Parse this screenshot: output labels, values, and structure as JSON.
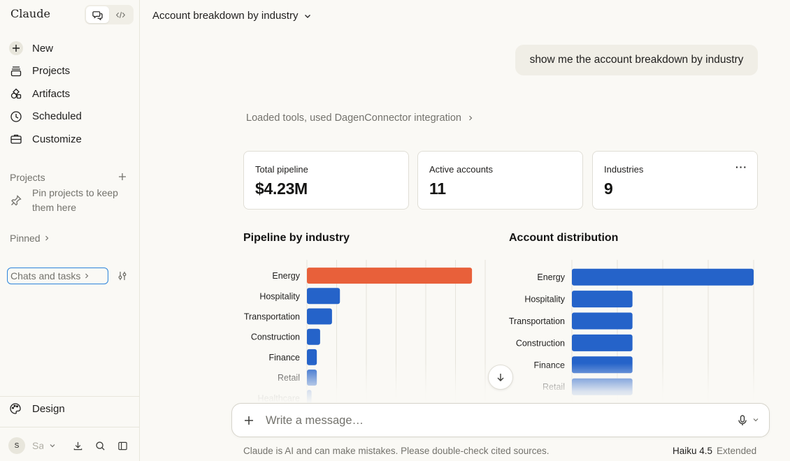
{
  "sidebar": {
    "brand": "Claude",
    "nav": [
      {
        "label": "New",
        "icon": "plus-icon"
      },
      {
        "label": "Projects",
        "icon": "projects-icon"
      },
      {
        "label": "Artifacts",
        "icon": "artifacts-icon"
      },
      {
        "label": "Scheduled",
        "icon": "clock-icon"
      },
      {
        "label": "Customize",
        "icon": "briefcase-icon"
      }
    ],
    "projects_label": "Projects",
    "pin_hint": "Pin projects to keep them here",
    "pinned_label": "Pinned",
    "chats_filter_label": "Chats and tasks",
    "design_label": "Design",
    "user_initial": "S",
    "user_name": "Sa"
  },
  "header": {
    "title": "Account breakdown by industry"
  },
  "conversation": {
    "user_message": "show me the account breakdown by industry",
    "tools_line": "Loaded tools, used DagenConnector integration"
  },
  "stats": [
    {
      "label": "Total pipeline",
      "value": "$4.23M"
    },
    {
      "label": "Active accounts",
      "value": "11"
    },
    {
      "label": "Industries",
      "value": "9",
      "menu": "···"
    }
  ],
  "chart_data": [
    {
      "type": "bar",
      "orientation": "horizontal",
      "title": "Pipeline by industry",
      "categories": [
        "Energy",
        "Hospitality",
        "Transportation",
        "Construction",
        "Finance",
        "Retail",
        "Healthcare"
      ],
      "values": [
        2.5,
        0.5,
        0.38,
        0.2,
        0.15,
        0.15,
        0.07
      ],
      "xlim": [
        0,
        2.7
      ],
      "grid": true,
      "colors": {
        "highlight": "#e8603a",
        "bar": "#2563c9"
      }
    },
    {
      "type": "bar",
      "orientation": "horizontal",
      "title": "Account distribution",
      "categories": [
        "Energy",
        "Hospitality",
        "Transportation",
        "Construction",
        "Finance",
        "Retail"
      ],
      "values": [
        3,
        1,
        1,
        1,
        1,
        1
      ],
      "xlim": [
        0,
        3
      ],
      "grid": true,
      "colors": {
        "bar": "#2563c9"
      }
    }
  ],
  "composer": {
    "placeholder": "Write a message…"
  },
  "footer": {
    "disclaimer": "Claude is AI and can make mistakes. Please double-check cited sources.",
    "model": "Haiku 4.5",
    "mode": "Extended"
  }
}
